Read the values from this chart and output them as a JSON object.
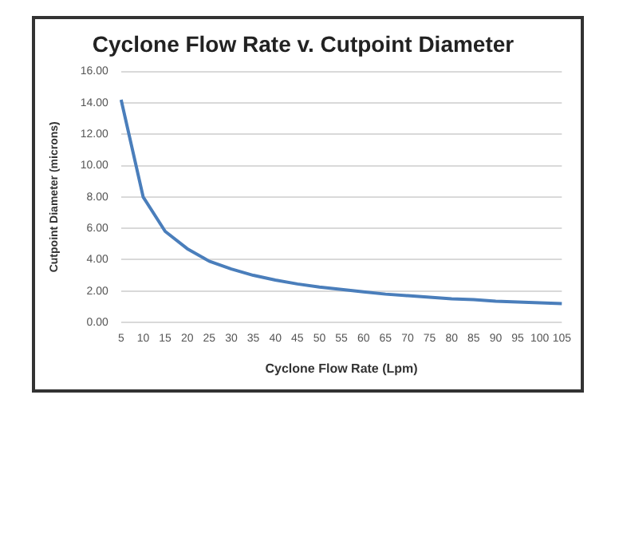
{
  "chart_data": {
    "type": "line",
    "title": "Cyclone Flow Rate v. Cutpoint Diameter",
    "xlabel": "Cyclone Flow Rate (Lpm)",
    "ylabel": "Cutpoint Diameter (microns)",
    "categories": [
      "5",
      "10",
      "15",
      "20",
      "25",
      "30",
      "35",
      "40",
      "45",
      "50",
      "55",
      "60",
      "65",
      "70",
      "75",
      "80",
      "85",
      "90",
      "95",
      "100",
      "105"
    ],
    "series": [
      {
        "color": "#4a7ebb",
        "values": [
          14.2,
          8.0,
          5.8,
          4.7,
          3.9,
          3.4,
          3.0,
          2.7,
          2.45,
          2.25,
          2.1,
          1.95,
          1.8,
          1.7,
          1.6,
          1.5,
          1.45,
          1.35,
          1.3,
          1.25,
          1.2
        ]
      }
    ],
    "ylim": [
      0,
      16
    ],
    "yticks": [
      {
        "value": 0,
        "label": "0.00"
      },
      {
        "value": 2,
        "label": "2.00"
      },
      {
        "value": 4,
        "label": "4.00"
      },
      {
        "value": 6,
        "label": "6.00"
      },
      {
        "value": 8,
        "label": "8.00"
      },
      {
        "value": 10,
        "label": "10.00"
      },
      {
        "value": 12,
        "label": "12.00"
      },
      {
        "value": 14,
        "label": "14.00"
      },
      {
        "value": 16,
        "label": "16.00"
      }
    ],
    "grid": "y",
    "legend": false,
    "marker": "none",
    "line_style": "solid"
  }
}
